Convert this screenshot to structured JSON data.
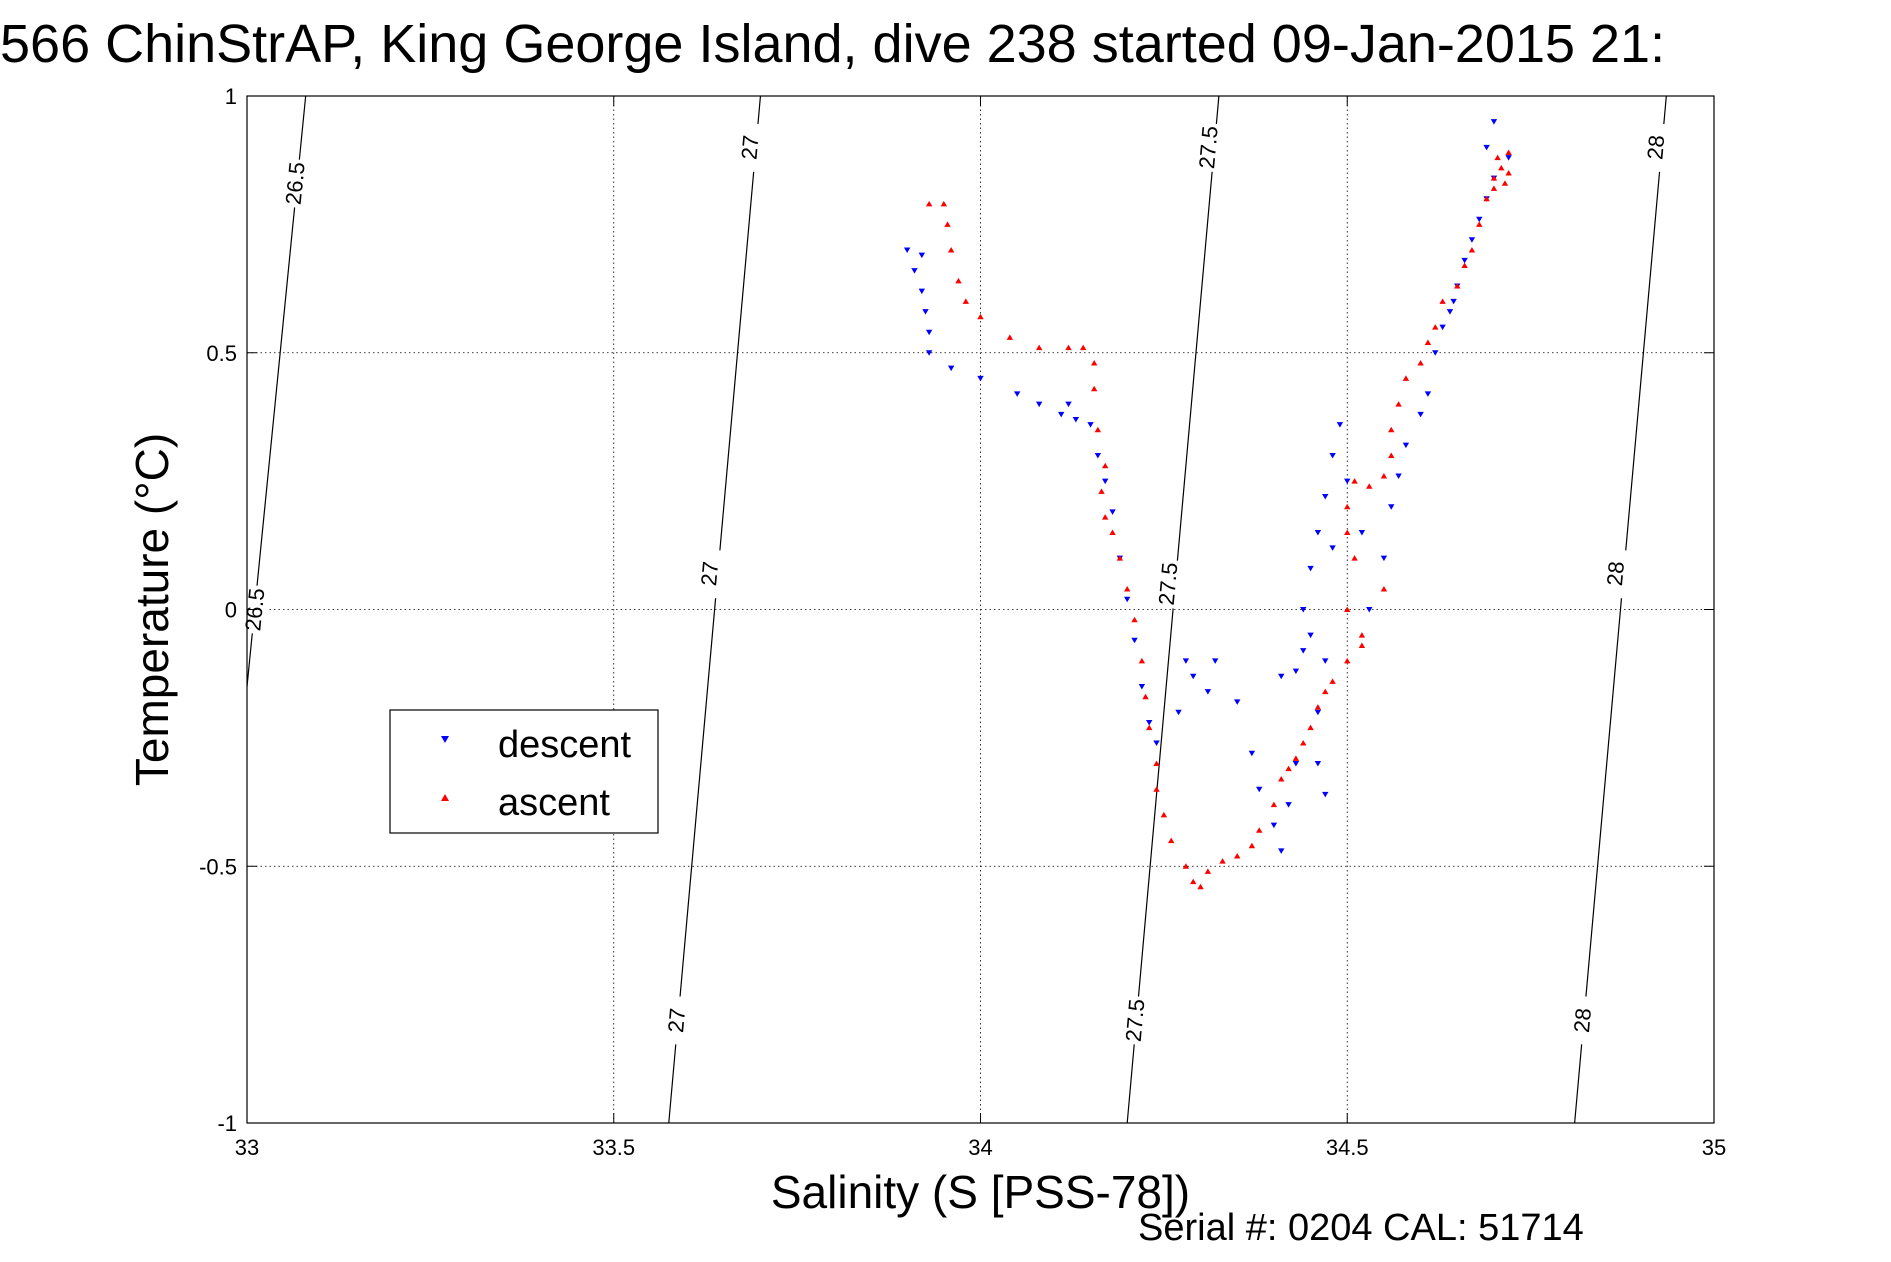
{
  "chart_data": {
    "type": "scatter",
    "title": "566 ChinStrAP, King George Island, dive 238 started 09-Jan-2015 21:",
    "xlabel": "Salinity (S [PSS-78])",
    "ylabel": "Temperature (°C)",
    "xlim": [
      33,
      35
    ],
    "ylim": [
      -1,
      1
    ],
    "x_ticks": [
      "33",
      "33.5",
      "34",
      "34.5",
      "35"
    ],
    "y_ticks": [
      "1",
      "0.5",
      "0",
      "-0.5",
      "-1"
    ],
    "grid": true,
    "legend_position": "center-left",
    "footer": "Serial #: 0204  CAL: 51714",
    "isopycnals": [
      {
        "label": "26.5",
        "points": [
          [
            33.0,
            -0.15
          ],
          [
            33.08,
            1.0
          ]
        ],
        "label_positions": [
          [
            33.065,
            0.83
          ],
          [
            33.01,
            0.0
          ]
        ]
      },
      {
        "label": "27",
        "points": [
          [
            33.575,
            -1.0
          ],
          [
            33.7,
            1.0
          ]
        ],
        "label_positions": [
          [
            33.685,
            0.9
          ],
          [
            33.63,
            0.07
          ],
          [
            33.585,
            -0.8
          ]
        ]
      },
      {
        "label": "27.5",
        "points": [
          [
            34.2,
            -1.0
          ],
          [
            34.325,
            1.0
          ]
        ],
        "label_positions": [
          [
            34.31,
            0.9
          ],
          [
            34.255,
            0.05
          ],
          [
            34.21,
            -0.8
          ]
        ]
      },
      {
        "label": "28",
        "points": [
          [
            34.81,
            -1.0
          ],
          [
            34.935,
            1.0
          ]
        ],
        "label_positions": [
          [
            34.92,
            0.9
          ],
          [
            34.865,
            0.07
          ],
          [
            34.82,
            -0.8
          ]
        ]
      }
    ],
    "series": [
      {
        "name": "descent",
        "color": "#0000ff",
        "marker": "triangle-down",
        "points": [
          [
            33.9,
            0.7
          ],
          [
            33.92,
            0.69
          ],
          [
            33.91,
            0.66
          ],
          [
            33.92,
            0.62
          ],
          [
            33.925,
            0.58
          ],
          [
            33.93,
            0.54
          ],
          [
            33.93,
            0.5
          ],
          [
            33.96,
            0.47
          ],
          [
            34.0,
            0.45
          ],
          [
            34.05,
            0.42
          ],
          [
            34.08,
            0.4
          ],
          [
            34.11,
            0.38
          ],
          [
            34.12,
            0.4
          ],
          [
            34.13,
            0.37
          ],
          [
            34.15,
            0.36
          ],
          [
            34.16,
            0.3
          ],
          [
            34.17,
            0.25
          ],
          [
            34.18,
            0.19
          ],
          [
            34.19,
            0.1
          ],
          [
            34.2,
            0.02
          ],
          [
            34.21,
            -0.06
          ],
          [
            34.22,
            -0.15
          ],
          [
            34.23,
            -0.22
          ],
          [
            34.24,
            -0.26
          ],
          [
            34.27,
            -0.2
          ],
          [
            34.28,
            -0.1
          ],
          [
            34.29,
            -0.13
          ],
          [
            34.31,
            -0.16
          ],
          [
            34.32,
            -0.1
          ],
          [
            34.35,
            -0.18
          ],
          [
            34.37,
            -0.28
          ],
          [
            34.38,
            -0.35
          ],
          [
            34.4,
            -0.42
          ],
          [
            34.41,
            -0.47
          ],
          [
            34.42,
            -0.38
          ],
          [
            34.43,
            -0.3
          ],
          [
            34.41,
            -0.13
          ],
          [
            34.43,
            -0.12
          ],
          [
            34.44,
            -0.08
          ],
          [
            34.45,
            -0.05
          ],
          [
            34.44,
            0.0
          ],
          [
            34.45,
            0.08
          ],
          [
            34.46,
            0.15
          ],
          [
            34.47,
            0.22
          ],
          [
            34.48,
            0.3
          ],
          [
            34.49,
            0.36
          ],
          [
            34.48,
            0.12
          ],
          [
            34.47,
            -0.1
          ],
          [
            34.46,
            -0.2
          ],
          [
            34.46,
            -0.3
          ],
          [
            34.47,
            -0.36
          ],
          [
            34.5,
            0.25
          ],
          [
            34.52,
            0.15
          ],
          [
            34.53,
            0.0
          ],
          [
            34.55,
            0.1
          ],
          [
            34.56,
            0.2
          ],
          [
            34.57,
            0.26
          ],
          [
            34.58,
            0.32
          ],
          [
            34.6,
            0.38
          ],
          [
            34.61,
            0.42
          ],
          [
            34.62,
            0.5
          ],
          [
            34.63,
            0.55
          ],
          [
            34.64,
            0.58
          ],
          [
            34.645,
            0.6
          ],
          [
            34.65,
            0.63
          ],
          [
            34.66,
            0.68
          ],
          [
            34.67,
            0.72
          ],
          [
            34.68,
            0.76
          ],
          [
            34.69,
            0.8
          ],
          [
            34.7,
            0.84
          ],
          [
            34.69,
            0.9
          ],
          [
            34.7,
            0.95
          ],
          [
            34.72,
            0.88
          ]
        ]
      },
      {
        "name": "ascent",
        "color": "#ff0000",
        "marker": "triangle-up",
        "points": [
          [
            33.93,
            0.79
          ],
          [
            33.95,
            0.79
          ],
          [
            33.955,
            0.75
          ],
          [
            33.96,
            0.7
          ],
          [
            33.97,
            0.64
          ],
          [
            33.98,
            0.6
          ],
          [
            34.0,
            0.57
          ],
          [
            34.04,
            0.53
          ],
          [
            34.08,
            0.51
          ],
          [
            34.12,
            0.51
          ],
          [
            34.14,
            0.51
          ],
          [
            34.155,
            0.48
          ],
          [
            34.155,
            0.43
          ],
          [
            34.16,
            0.35
          ],
          [
            34.17,
            0.28
          ],
          [
            34.165,
            0.23
          ],
          [
            34.17,
            0.18
          ],
          [
            34.18,
            0.15
          ],
          [
            34.19,
            0.1
          ],
          [
            34.2,
            0.04
          ],
          [
            34.21,
            -0.02
          ],
          [
            34.22,
            -0.1
          ],
          [
            34.225,
            -0.17
          ],
          [
            34.23,
            -0.23
          ],
          [
            34.24,
            -0.3
          ],
          [
            34.24,
            -0.35
          ],
          [
            34.25,
            -0.4
          ],
          [
            34.26,
            -0.45
          ],
          [
            34.28,
            -0.5
          ],
          [
            34.29,
            -0.53
          ],
          [
            34.3,
            -0.54
          ],
          [
            34.31,
            -0.51
          ],
          [
            34.33,
            -0.49
          ],
          [
            34.35,
            -0.48
          ],
          [
            34.37,
            -0.46
          ],
          [
            34.38,
            -0.43
          ],
          [
            34.4,
            -0.38
          ],
          [
            34.41,
            -0.33
          ],
          [
            34.42,
            -0.31
          ],
          [
            34.43,
            -0.29
          ],
          [
            34.44,
            -0.26
          ],
          [
            34.45,
            -0.23
          ],
          [
            34.46,
            -0.19
          ],
          [
            34.47,
            -0.16
          ],
          [
            34.48,
            -0.14
          ],
          [
            34.5,
            -0.1
          ],
          [
            34.52,
            -0.07
          ],
          [
            34.5,
            0.0
          ],
          [
            34.51,
            0.1
          ],
          [
            34.5,
            0.15
          ],
          [
            34.5,
            0.2
          ],
          [
            34.51,
            0.25
          ],
          [
            34.53,
            0.24
          ],
          [
            34.55,
            0.26
          ],
          [
            34.56,
            0.3
          ],
          [
            34.56,
            0.35
          ],
          [
            34.57,
            0.4
          ],
          [
            34.58,
            0.45
          ],
          [
            34.6,
            0.48
          ],
          [
            34.61,
            0.52
          ],
          [
            34.62,
            0.55
          ],
          [
            34.63,
            0.6
          ],
          [
            34.65,
            0.63
          ],
          [
            34.66,
            0.67
          ],
          [
            34.67,
            0.7
          ],
          [
            34.68,
            0.75
          ],
          [
            34.69,
            0.8
          ],
          [
            34.7,
            0.84
          ],
          [
            34.71,
            0.86
          ],
          [
            34.7,
            0.82
          ],
          [
            34.72,
            0.85
          ],
          [
            34.72,
            0.89
          ],
          [
            34.705,
            0.88
          ],
          [
            34.715,
            0.83
          ],
          [
            34.55,
            0.04
          ],
          [
            34.52,
            -0.05
          ]
        ]
      }
    ]
  }
}
